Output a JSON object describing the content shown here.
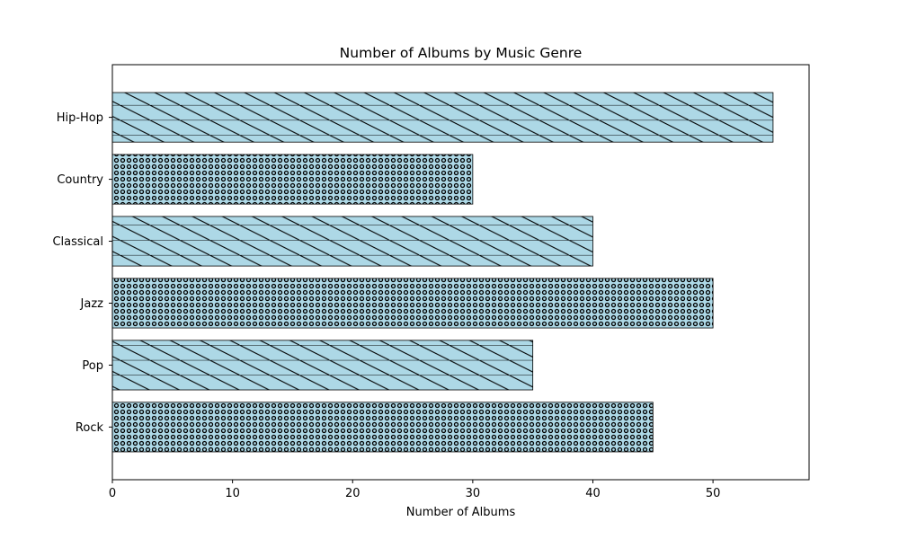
{
  "chart_data": {
    "type": "bar",
    "orientation": "horizontal",
    "title": "Number of Albums by Music Genre",
    "xlabel": "Number of Albums",
    "ylabel": "",
    "categories": [
      "Rock",
      "Pop",
      "Jazz",
      "Classical",
      "Country",
      "Hip-Hop"
    ],
    "values": [
      45,
      35,
      50,
      40,
      30,
      55
    ],
    "patterns": [
      "dots",
      "diagonal-grid",
      "dots",
      "diagonal-grid",
      "dots",
      "diagonal-grid"
    ],
    "xlim": [
      0,
      58
    ],
    "xticks": [
      0,
      10,
      20,
      30,
      40,
      50
    ],
    "grid": false,
    "colors": {
      "bar_fill": "#add8e6",
      "hatch": "#000000",
      "axes": "#000000"
    }
  }
}
